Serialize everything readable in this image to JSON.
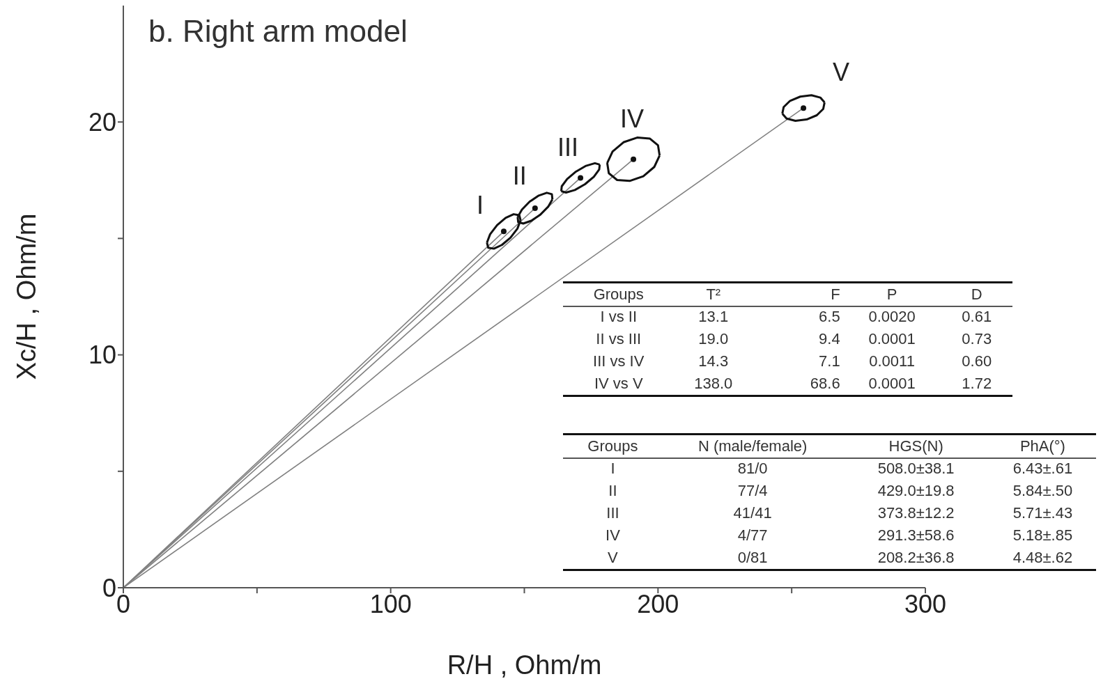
{
  "chart_data": {
    "type": "line",
    "title": "b. Right arm model",
    "xlabel": "R/H , Ohm/m",
    "ylabel": "Xc/H , Ohm/m",
    "xlim": [
      0,
      300
    ],
    "xticks": [
      0,
      {
        "value": 50,
        "label": null
      },
      100,
      {
        "value": 150,
        "label": null
      },
      200,
      {
        "value": 250,
        "label": null
      },
      300
    ],
    "ylim": [
      0,
      25
    ],
    "yticks": [
      0,
      {
        "value": 5,
        "label": null
      },
      10,
      {
        "value": 15,
        "label": null
      },
      20
    ],
    "series": [
      {
        "color": "#808080",
        "x": [
          0,
          142.3
        ],
        "values": [
          0,
          15.3
        ]
      },
      {
        "color": "#808080",
        "x": [
          0,
          154.0
        ],
        "values": [
          0,
          16.3
        ]
      },
      {
        "color": "#808080",
        "x": [
          0,
          171.0
        ],
        "values": [
          0,
          17.6
        ]
      },
      {
        "color": "#808080",
        "x": [
          0,
          190.8
        ],
        "values": [
          0,
          18.4
        ]
      },
      {
        "color": "#808080",
        "x": [
          0,
          254.4
        ],
        "values": [
          0,
          20.6
        ]
      },
      {
        "color": "#111111",
        "x": [
          136.0,
          137.2,
          139.8,
          143.0,
          146.0,
          148.1,
          148.6
        ],
        "values": [
          14.82,
          15.18,
          15.57,
          15.88,
          16.04,
          16.0,
          15.78
        ]
      },
      {
        "color": "#111111",
        "x": [
          136.0,
          136.5,
          138.6,
          141.6,
          144.8,
          147.4,
          148.6
        ],
        "values": [
          14.82,
          14.6,
          14.56,
          14.72,
          15.03,
          15.42,
          15.78
        ]
      },
      {
        "color": "#111111",
        "x": [
          147.5,
          149.1,
          152.0,
          155.4,
          158.4,
          160.3,
          160.5
        ],
        "values": [
          15.92,
          16.24,
          16.58,
          16.84,
          16.96,
          16.9,
          16.68
        ]
      },
      {
        "color": "#111111",
        "x": [
          147.5,
          147.7,
          149.6,
          152.6,
          156.0,
          158.9,
          160.5
        ],
        "values": [
          15.92,
          15.7,
          15.64,
          15.76,
          16.02,
          16.36,
          16.68
        ]
      },
      {
        "color": "#111111",
        "x": [
          163.8,
          164.0,
          166.0,
          169.3,
          173.1,
          176.4,
          178.2
        ],
        "values": [
          17.03,
          17.24,
          17.55,
          17.87,
          18.12,
          18.23,
          18.17
        ]
      },
      {
        "color": "#111111",
        "x": [
          163.8,
          165.6,
          168.9,
          172.7,
          176.0,
          178.0,
          178.2
        ],
        "values": [
          17.03,
          16.97,
          17.08,
          17.33,
          17.65,
          17.96,
          18.17
        ]
      },
      {
        "color": "#111111",
        "x": [
          181.0,
          183.0,
          187.1,
          192.2,
          196.9,
          200.0,
          200.6
        ],
        "values": [
          18.24,
          18.73,
          19.13,
          19.33,
          19.29,
          19.0,
          18.56
        ]
      },
      {
        "color": "#111111",
        "x": [
          181.0,
          181.6,
          184.7,
          189.4,
          194.5,
          198.6,
          200.6
        ],
        "values": [
          18.24,
          17.8,
          17.51,
          17.47,
          17.67,
          18.07,
          18.56
        ]
      },
      {
        "color": "#111111",
        "x": [
          246.5,
          247.0,
          249.4,
          253.2,
          257.4,
          260.7,
          262.3
        ],
        "values": [
          20.36,
          20.64,
          20.91,
          21.09,
          21.15,
          21.05,
          20.84
        ]
      },
      {
        "color": "#111111",
        "x": [
          246.5,
          248.1,
          251.4,
          255.6,
          259.4,
          261.8,
          262.3
        ],
        "values": [
          20.36,
          20.15,
          20.05,
          20.11,
          20.29,
          20.56,
          20.84
        ]
      },
      {
        "type": "scatter",
        "marker": "circle",
        "color": "#111111",
        "x": [
          142.3,
          154.0,
          171.0,
          190.8,
          254.4
        ],
        "values": [
          15.3,
          16.3,
          17.6,
          18.4,
          20.6
        ]
      }
    ],
    "annotations": [
      {
        "text": "I",
        "x": 142.3,
        "y": 15.3
      },
      {
        "text": "II",
        "x": 154.0,
        "y": 16.3
      },
      {
        "text": "III",
        "x": 171.0,
        "y": 17.6
      },
      {
        "text": "IV",
        "x": 190.8,
        "y": 18.4
      },
      {
        "text": "V",
        "x": 254.4,
        "y": 20.6
      },
      "Groups",
      "T²",
      "F",
      "P",
      "D",
      "I vs II",
      "13.1",
      "6.5",
      "0.0020",
      "0.61",
      "II vs III",
      "19.0",
      "9.4",
      "0.0001",
      "0.73",
      "III vs IV",
      "14.3",
      "7.1",
      "0.0011",
      "0.60",
      "IV vs V",
      "138.0",
      "68.6",
      "0.0001",
      "1.72",
      "Groups",
      "N (male/female)",
      "HGS(N)",
      "PhA(°)",
      "I",
      "81/0",
      "508.0±38.1",
      "6.43±.61",
      "II",
      "77/4",
      "429.0±19.8",
      "5.84±.50",
      "III",
      "41/41",
      "373.8±12.2",
      "5.71±.43",
      "IV",
      "4/77",
      "291.3±58.6",
      "5.18±.85",
      "V",
      "0/81",
      "208.2±36.8",
      "4.48±.62"
    ]
  }
}
